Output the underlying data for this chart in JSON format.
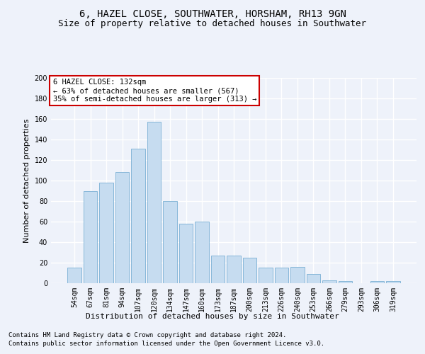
{
  "title1": "6, HAZEL CLOSE, SOUTHWATER, HORSHAM, RH13 9GN",
  "title2": "Size of property relative to detached houses in Southwater",
  "xlabel": "Distribution of detached houses by size in Southwater",
  "ylabel": "Number of detached properties",
  "categories": [
    "54sqm",
    "67sqm",
    "81sqm",
    "94sqm",
    "107sqm",
    "120sqm",
    "134sqm",
    "147sqm",
    "160sqm",
    "173sqm",
    "187sqm",
    "200sqm",
    "213sqm",
    "226sqm",
    "240sqm",
    "253sqm",
    "266sqm",
    "279sqm",
    "293sqm",
    "306sqm",
    "319sqm"
  ],
  "values": [
    15,
    90,
    98,
    108,
    131,
    157,
    80,
    58,
    60,
    27,
    27,
    25,
    15,
    15,
    16,
    9,
    3,
    2,
    0,
    2,
    2
  ],
  "bar_color": "#c6dcf0",
  "bar_edge_color": "#7ab0d4",
  "annotation_box_text": "6 HAZEL CLOSE: 132sqm\n← 63% of detached houses are smaller (567)\n35% of semi-detached houses are larger (313) →",
  "annotation_box_color": "#ffffff",
  "annotation_box_edge_color": "#cc0000",
  "ylim": [
    0,
    200
  ],
  "yticks": [
    0,
    20,
    40,
    60,
    80,
    100,
    120,
    140,
    160,
    180,
    200
  ],
  "footer1": "Contains HM Land Registry data © Crown copyright and database right 2024.",
  "footer2": "Contains public sector information licensed under the Open Government Licence v3.0.",
  "bg_color": "#eef2fa",
  "plot_bg_color": "#eef2fa",
  "grid_color": "#ffffff",
  "title1_fontsize": 10,
  "title2_fontsize": 9,
  "axis_label_fontsize": 8,
  "tick_fontsize": 7,
  "annotation_fontsize": 7.5,
  "footer_fontsize": 6.5
}
